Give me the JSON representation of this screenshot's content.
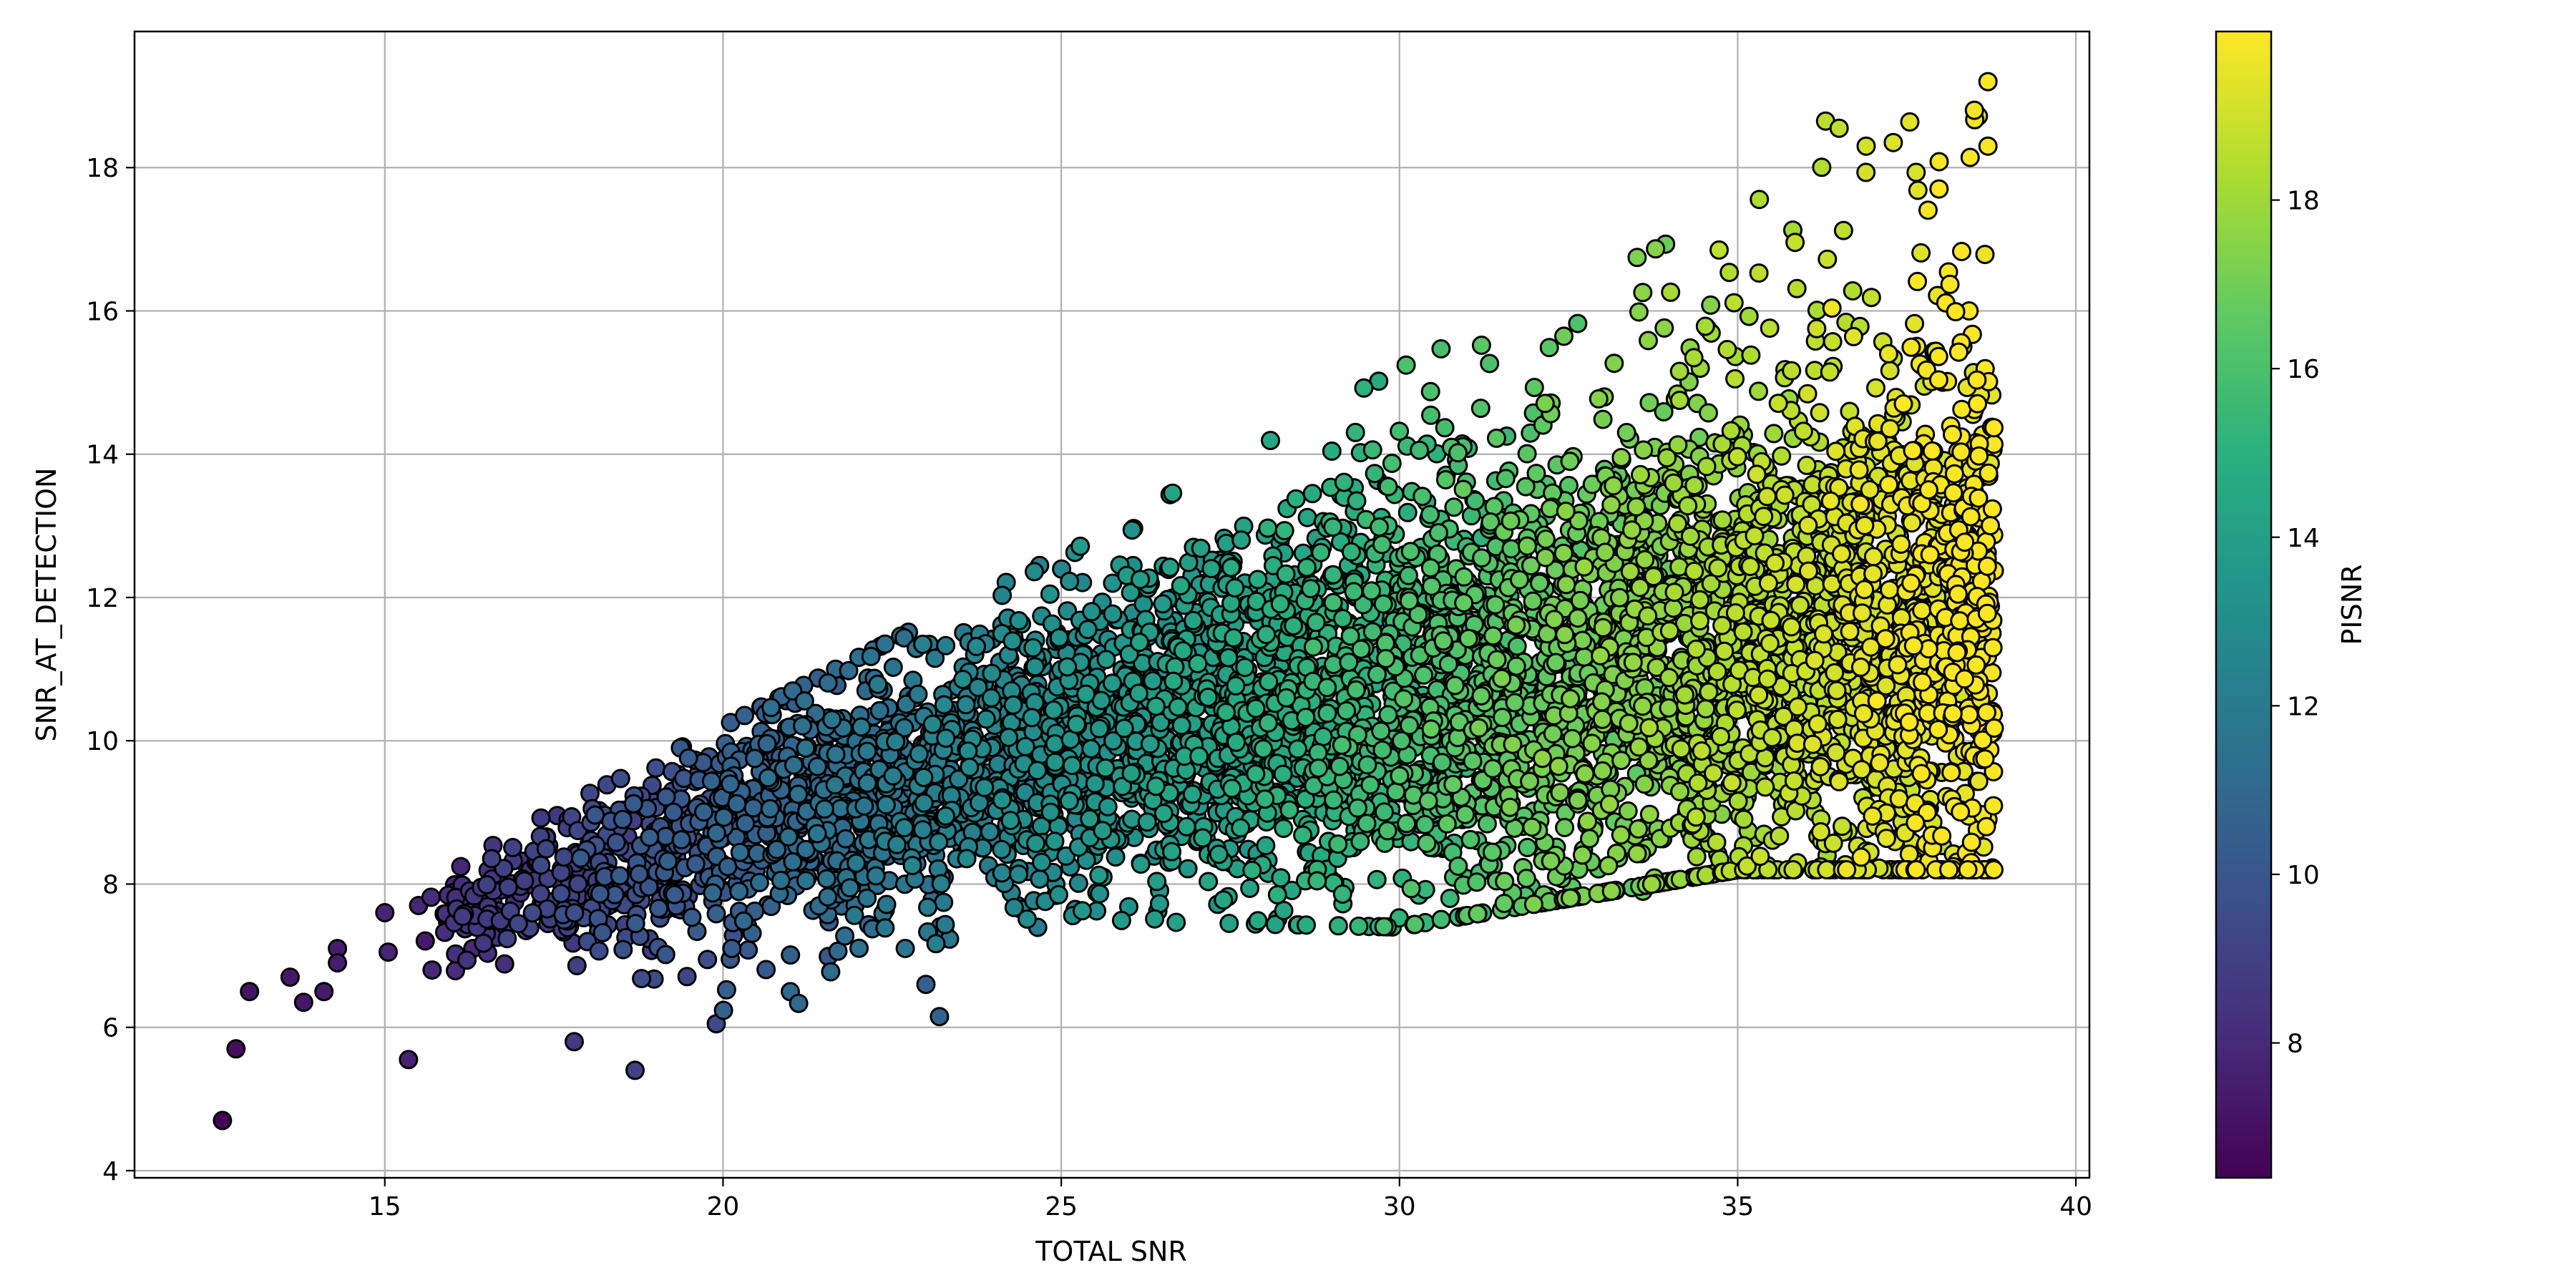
{
  "chart_data": {
    "type": "scatter",
    "xlabel": "TOTAL SNR",
    "ylabel": "SNR_AT_DETECTION",
    "xlim": [
      11.3,
      40.2
    ],
    "ylim": [
      3.9,
      19.9
    ],
    "xticks": [
      15,
      20,
      25,
      30,
      35,
      40
    ],
    "yticks": [
      4,
      6,
      8,
      10,
      12,
      14,
      16,
      18
    ],
    "grid": true,
    "color_variable": "PISNR",
    "colormap": "viridis",
    "colorbar": {
      "label": "PISNR",
      "range": [
        6.4,
        20.0
      ],
      "ticks": [
        8,
        10,
        12,
        14,
        16,
        18
      ]
    },
    "marker_edge_color": "#000000",
    "highlighted_points": [
      {
        "x": 12.6,
        "y": 4.7,
        "c": 6.5
      },
      {
        "x": 12.8,
        "y": 5.7,
        "c": 6.9
      },
      {
        "x": 13.0,
        "y": 6.5,
        "c": 7.1
      },
      {
        "x": 13.6,
        "y": 6.7,
        "c": 7.3
      },
      {
        "x": 13.8,
        "y": 6.35,
        "c": 7.3
      },
      {
        "x": 14.1,
        "y": 6.5,
        "c": 7.4
      },
      {
        "x": 14.3,
        "y": 7.1,
        "c": 7.5
      },
      {
        "x": 14.3,
        "y": 6.9,
        "c": 7.5
      },
      {
        "x": 15.0,
        "y": 7.6,
        "c": 7.8
      },
      {
        "x": 15.05,
        "y": 7.05,
        "c": 7.8
      },
      {
        "x": 15.35,
        "y": 5.55,
        "c": 7.7
      },
      {
        "x": 15.5,
        "y": 7.7,
        "c": 7.9
      },
      {
        "x": 15.7,
        "y": 6.8,
        "c": 7.9
      },
      {
        "x": 17.8,
        "y": 5.8,
        "c": 8.7
      },
      {
        "x": 18.7,
        "y": 5.4,
        "c": 9.0
      },
      {
        "x": 19.9,
        "y": 6.05,
        "c": 9.4
      },
      {
        "x": 23.0,
        "y": 6.6,
        "c": 10.6
      },
      {
        "x": 23.2,
        "y": 6.15,
        "c": 10.7
      },
      {
        "x": 33.6,
        "y": 7.9,
        "c": 16.9
      },
      {
        "x": 34.8,
        "y": 8.2,
        "c": 17.4
      },
      {
        "x": 36.3,
        "y": 18.65,
        "c": 18.6
      },
      {
        "x": 36.5,
        "y": 18.55,
        "c": 18.7
      },
      {
        "x": 37.9,
        "y": 8.6,
        "c": 19.5
      },
      {
        "x": 38.3,
        "y": 8.2,
        "c": 19.6
      },
      {
        "x": 38.7,
        "y": 19.2,
        "c": 19.9
      },
      {
        "x": 38.7,
        "y": 18.3,
        "c": 19.9
      },
      {
        "x": 38.7,
        "y": 8.9,
        "c": 19.8
      },
      {
        "x": 37.3,
        "y": 18.35,
        "c": 19.3
      },
      {
        "x": 36.9,
        "y": 18.3,
        "c": 19.1
      },
      {
        "x": 38.5,
        "y": 18.8,
        "c": 19.8
      }
    ],
    "cloud": {
      "count": 6000,
      "x_range": [
        15.5,
        38.8
      ],
      "description_of_envelope": [
        {
          "x": 16,
          "y_low": 6.8,
          "y_high": 8.3
        },
        {
          "x": 20,
          "y_low": 6.0,
          "y_high": 10.2
        },
        {
          "x": 25,
          "y_low": 7.5,
          "y_high": 12.6
        },
        {
          "x": 30,
          "y_low": 7.4,
          "y_high": 15.2
        },
        {
          "x": 35,
          "y_low": 8.2,
          "y_high": 17.4
        },
        {
          "x": 38.7,
          "y_low": 8.2,
          "y_high": 19.2
        }
      ],
      "y_mode_at": [
        {
          "x": 16,
          "y": 7.5
        },
        {
          "x": 20,
          "y": 8.8
        },
        {
          "x": 25,
          "y": 10.0
        },
        {
          "x": 30,
          "y": 10.7
        },
        {
          "x": 35,
          "y": 11.3
        },
        {
          "x": 38.7,
          "y": 11.8
        }
      ],
      "color_relation": "PISNR increases roughly linearly with TOTAL SNR (about 7 at 13 to 20 at 38.8)"
    }
  }
}
